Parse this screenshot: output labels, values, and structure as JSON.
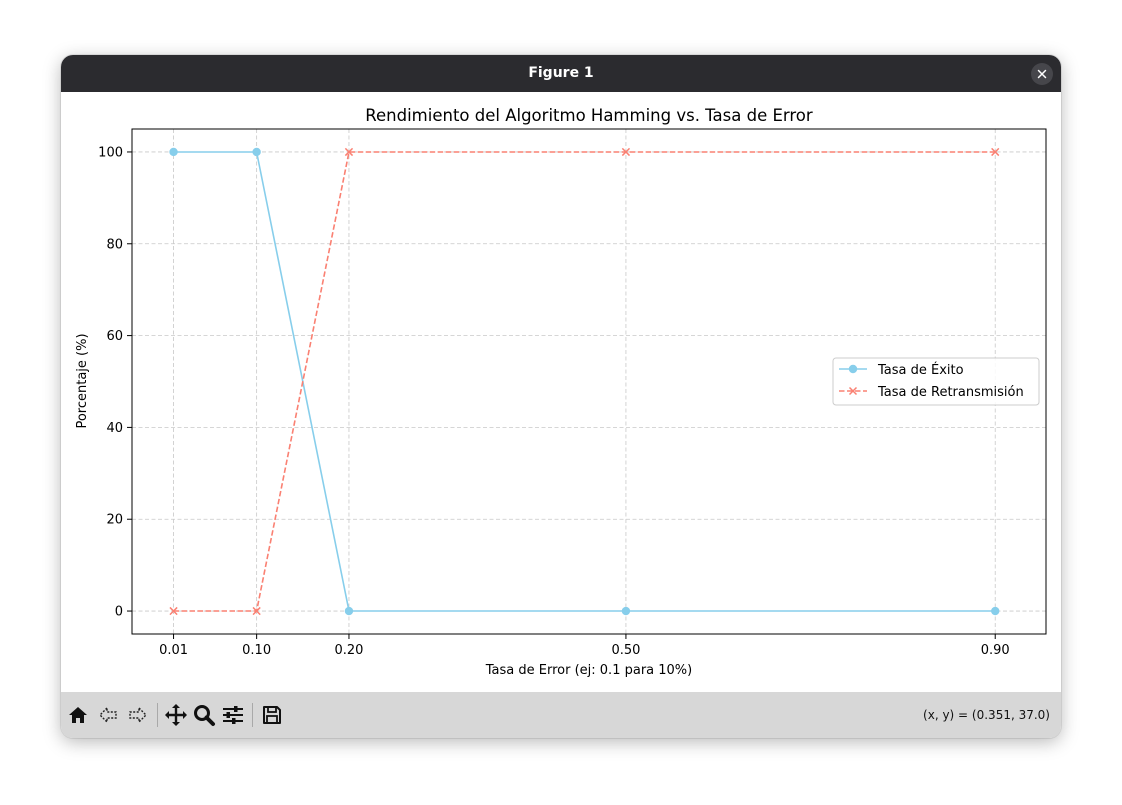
{
  "window": {
    "title": "Figure 1"
  },
  "toolbar": {
    "buttons": [
      "home-icon",
      "back-icon",
      "forward-icon",
      "pan-icon",
      "zoom-icon",
      "configure-icon",
      "save-icon"
    ],
    "coords": "(x, y) = (0.351, 37.0)"
  },
  "chart_data": {
    "type": "line",
    "title": "Rendimiento del Algoritmo Hamming vs. Tasa de Error",
    "xlabel": "Tasa de Error (ej: 0.1 para 10%)",
    "ylabel": "Porcentaje (%)",
    "x": [
      0.01,
      0.1,
      0.2,
      0.5,
      0.9
    ],
    "x_tick_labels": [
      "0.01",
      "0.10",
      "0.20",
      "0.50",
      "0.90"
    ],
    "xlim": [
      -0.035,
      0.955
    ],
    "ylim": [
      -5,
      105
    ],
    "y_ticks": [
      0,
      20,
      40,
      60,
      80,
      100
    ],
    "grid": true,
    "legend_position": "center-right",
    "series": [
      {
        "name": "Tasa de Éxito",
        "values": [
          100,
          100,
          0,
          0,
          0
        ],
        "color": "#87ceeb",
        "marker": "circle",
        "linestyle": "solid"
      },
      {
        "name": "Tasa de Retransmisión",
        "values": [
          0,
          0,
          100,
          100,
          100
        ],
        "color": "#fa8072",
        "marker": "x",
        "linestyle": "dashed"
      }
    ]
  }
}
